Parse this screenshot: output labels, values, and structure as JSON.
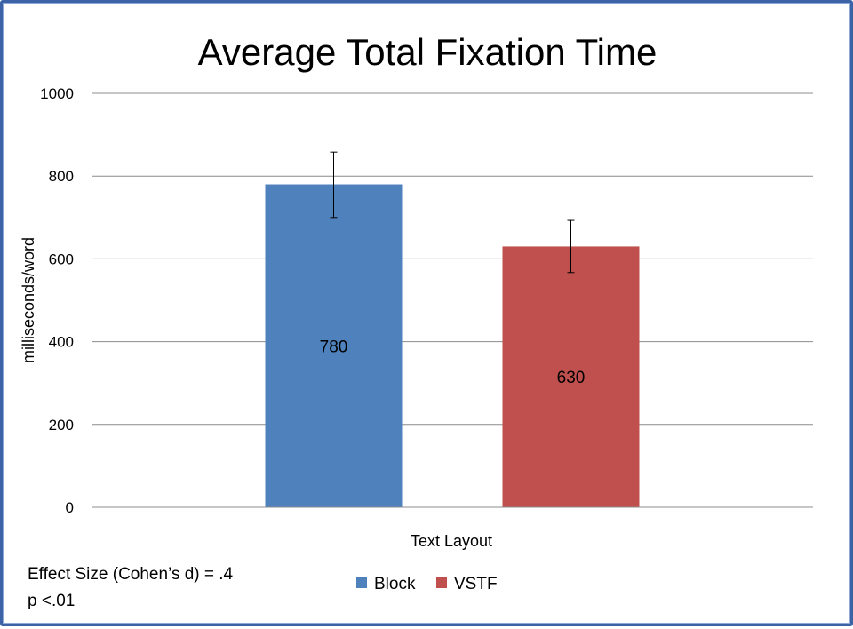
{
  "chart_data": {
    "type": "bar",
    "title": "Average  Total Fixation Time",
    "xlabel": "Text Layout",
    "ylabel": "milliseconds/word",
    "ylim": [
      0,
      1000
    ],
    "yticks": [
      0,
      200,
      400,
      600,
      800,
      1000
    ],
    "grid": true,
    "legend_position": "bottom",
    "series": [
      {
        "name": "Block",
        "value": 780,
        "label": "780",
        "error_low": 700,
        "error_high": 858,
        "color": "#4f81bd"
      },
      {
        "name": "VSTF",
        "value": 630,
        "label": "630",
        "error_low": 567,
        "error_high": 693,
        "color": "#c0504d"
      }
    ]
  },
  "notes": {
    "effect_size": "Effect Size (Cohen’s d) = .4",
    "p_value": "p <.01"
  }
}
